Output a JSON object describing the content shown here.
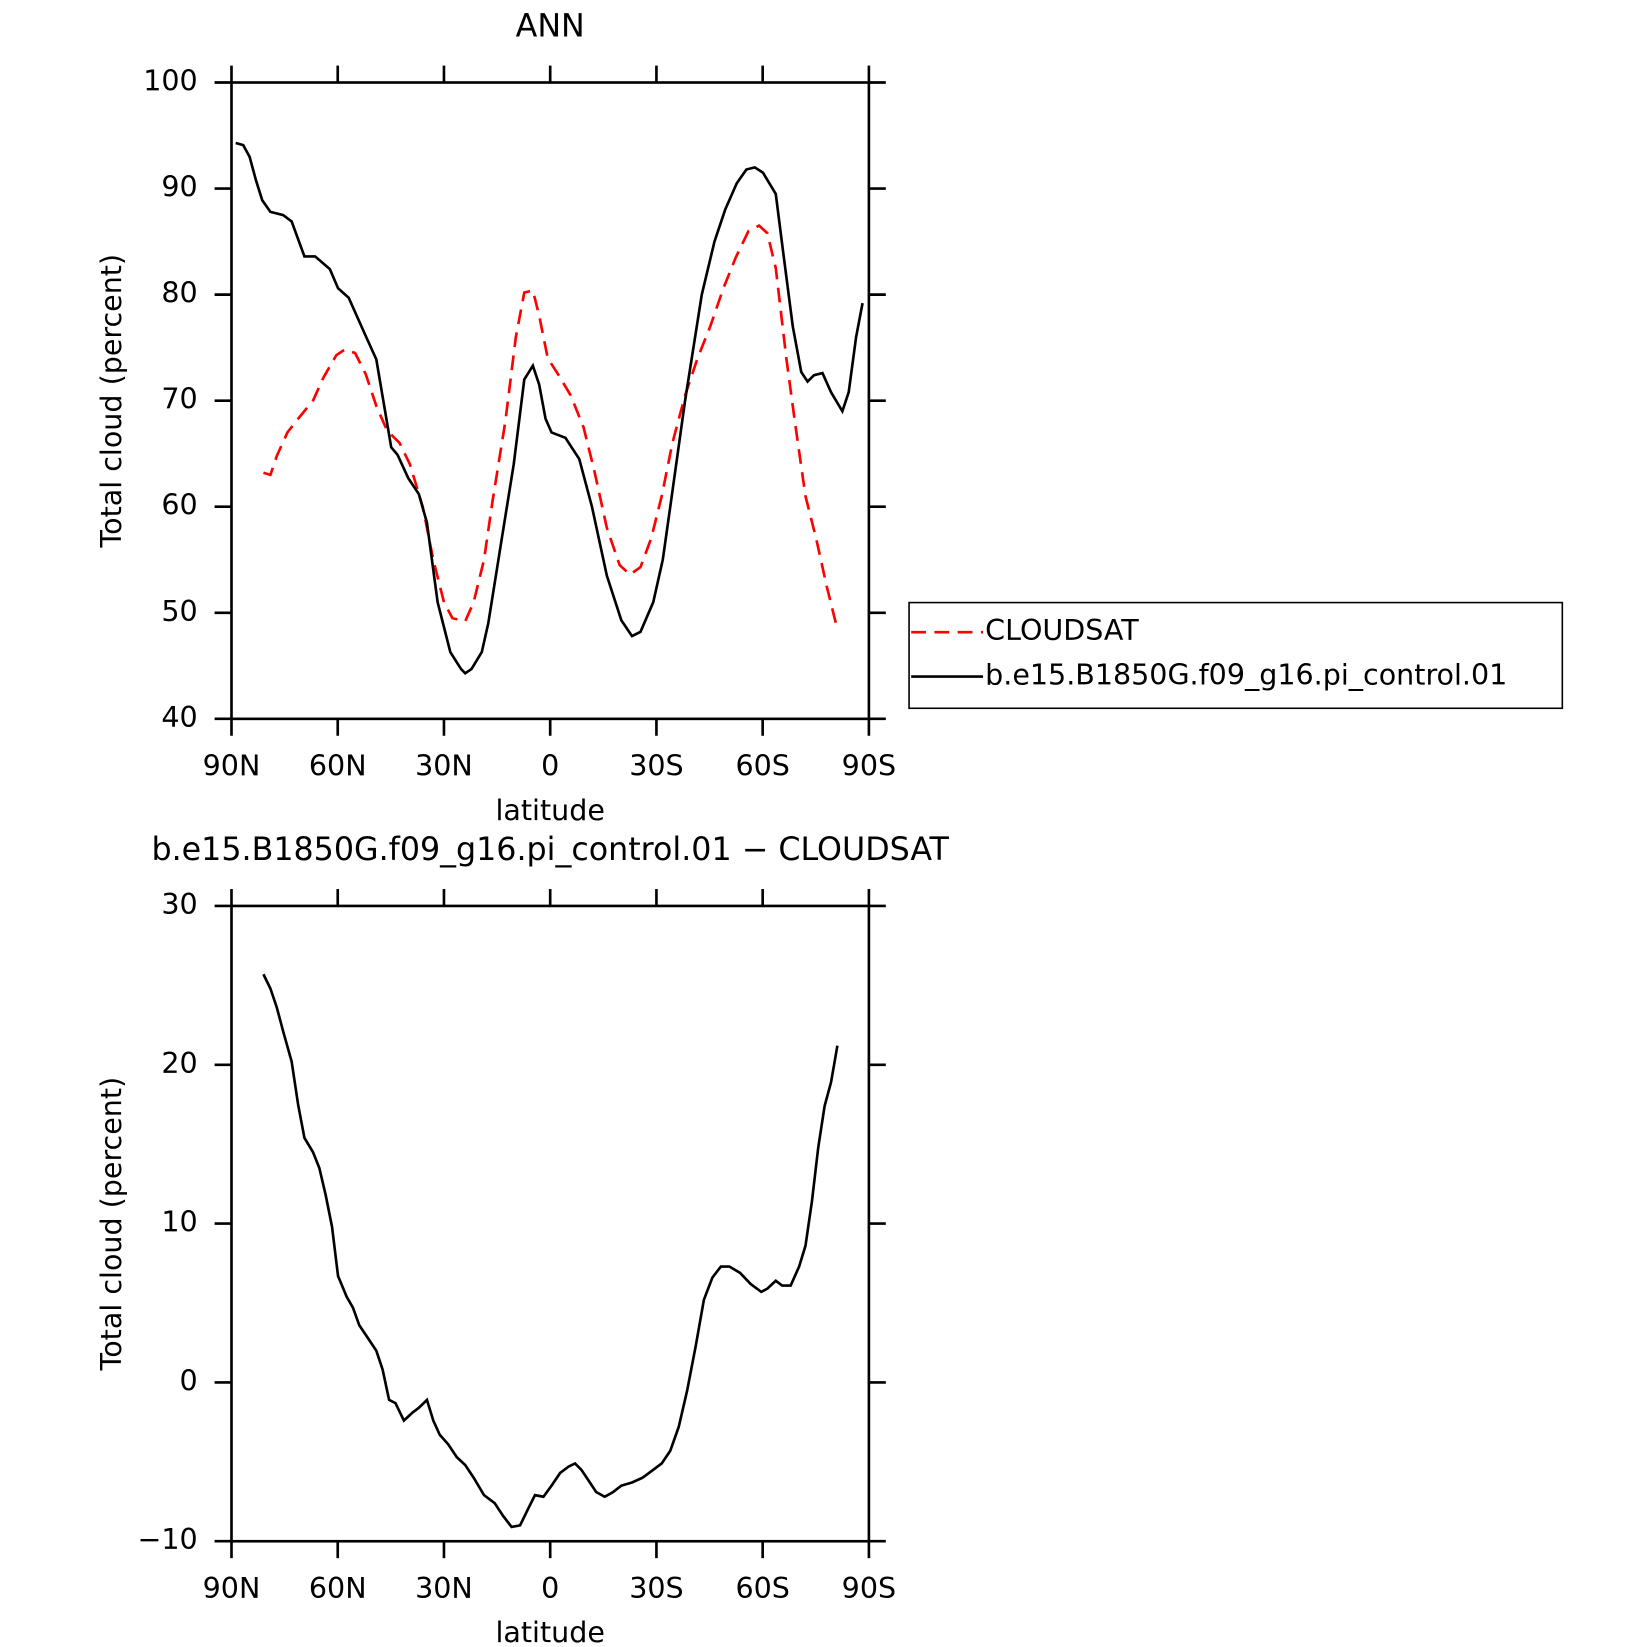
{
  "chart_data": [
    {
      "type": "line",
      "title": "ANN",
      "x_label": "latitude",
      "y_label": "Total cloud (percent)",
      "xlim": [
        90,
        -90
      ],
      "xticks": [
        {
          "value": 90,
          "label": "90N"
        },
        {
          "value": 60,
          "label": "60N"
        },
        {
          "value": 30,
          "label": "30N"
        },
        0,
        {
          "value": -30,
          "label": "30S"
        },
        {
          "value": -60,
          "label": "60S"
        },
        {
          "value": -90,
          "label": "90S"
        }
      ],
      "ylim": [
        40,
        100
      ],
      "yticks": [
        40,
        50,
        60,
        70,
        80,
        90,
        100
      ],
      "legend": "right",
      "series": [
        {
          "name": "CLOUDSAT",
          "color": "#ff0000",
          "line_style": "dashed",
          "x": [
            81.0,
            79.0,
            77.2,
            74.2,
            71.2,
            67.0,
            64.0,
            60.4,
            58.1,
            55.1,
            52.1,
            49.1,
            46.1,
            42.5,
            39.6,
            36.0,
            33.0,
            30.0,
            27.6,
            24.0,
            21.6,
            18.7,
            16.3,
            12.7,
            9.7,
            7.3,
            4.9,
            3.1,
            0.7,
            -2.2,
            -5.8,
            -9.4,
            -12.4,
            -16.0,
            -19.6,
            -22.5,
            -25.5,
            -28.5,
            -31.5,
            -34.5,
            -38.1,
            -41.6,
            -45.2,
            -48.8,
            -52.4,
            -56.0,
            -59.0,
            -61.3,
            -63.7,
            -66.7,
            -69.1,
            -72.1,
            -75.1,
            -78.1,
            -80.7
          ],
          "values": [
            63.2,
            63.0,
            64.8,
            67.0,
            68.3,
            70.0,
            72.2,
            74.3,
            74.8,
            74.5,
            72.5,
            69.5,
            67.2,
            66.0,
            64.0,
            60.0,
            55.0,
            51.0,
            49.5,
            49.2,
            51.0,
            55.0,
            60.5,
            68.0,
            76.0,
            80.2,
            80.4,
            78.0,
            74.0,
            72.5,
            70.5,
            67.5,
            63.5,
            58.0,
            54.5,
            53.6,
            54.3,
            57.0,
            61.0,
            66.0,
            70.5,
            74.0,
            77.0,
            80.5,
            83.5,
            86.0,
            86.5,
            85.8,
            82.5,
            74.0,
            68.0,
            61.0,
            57.0,
            52.5,
            49.0
          ]
        },
        {
          "name": "b.e15.B1850G.f09_g16.pi_control.01",
          "color": "#000000",
          "line_style": "solid",
          "x": [
            88.8,
            86.7,
            84.9,
            83.1,
            81.3,
            79.0,
            75.4,
            73.0,
            69.4,
            66.4,
            62.2,
            59.9,
            56.9,
            52.1,
            49.1,
            44.9,
            43.1,
            40.1,
            37.1,
            34.8,
            31.8,
            28.2,
            25.2,
            24.0,
            22.2,
            19.3,
            17.5,
            13.9,
            10.3,
            7.3,
            4.9,
            3.1,
            1.3,
            -0.4,
            -4.3,
            -8.2,
            -11.8,
            -16.0,
            -20.1,
            -23.1,
            -25.5,
            -29.1,
            -31.8,
            -33.9,
            -38.1,
            -42.8,
            -46.4,
            -49.4,
            -52.7,
            -55.4,
            -57.8,
            -60.1,
            -63.7,
            -65.8,
            -68.5,
            -70.9,
            -72.7,
            -74.5,
            -76.9,
            -79.3,
            -82.5,
            -84.3,
            -86.4,
            -88.2
          ],
          "values": [
            94.3,
            94.1,
            93.0,
            90.8,
            88.9,
            87.8,
            87.5,
            86.9,
            83.6,
            83.6,
            82.4,
            80.6,
            79.7,
            76.1,
            73.9,
            65.6,
            64.9,
            62.7,
            61.2,
            58.5,
            51.0,
            46.3,
            44.7,
            44.3,
            44.7,
            46.3,
            49.0,
            56.5,
            64.0,
            72.0,
            73.3,
            71.5,
            68.3,
            67.0,
            66.5,
            64.5,
            60.0,
            53.5,
            49.3,
            47.8,
            48.2,
            51.0,
            55.0,
            60.0,
            70.0,
            80.0,
            85.0,
            88.0,
            90.5,
            91.8,
            92.0,
            91.5,
            89.5,
            84.0,
            77.0,
            72.7,
            71.8,
            72.4,
            72.6,
            70.8,
            69.0,
            70.8,
            76.0,
            79.2
          ]
        }
      ]
    },
    {
      "type": "line",
      "title": "b.e15.B1850G.f09_g16.pi_control.01 − CLOUDSAT",
      "x_label": "latitude",
      "y_label": "Total cloud (percent)",
      "xlim": [
        90,
        -90
      ],
      "xticks": [
        {
          "value": 90,
          "label": "90N"
        },
        {
          "value": 60,
          "label": "60N"
        },
        {
          "value": 30,
          "label": "30N"
        },
        0,
        {
          "value": -30,
          "label": "30S"
        },
        {
          "value": -60,
          "label": "60S"
        },
        {
          "value": -90,
          "label": "90S"
        }
      ],
      "ylim": [
        -10,
        30
      ],
      "yticks": [
        {
          "value": -10,
          "label": "−10"
        },
        0,
        10,
        20,
        30
      ],
      "series": [
        {
          "color": "#000000",
          "line_style": "solid",
          "x": [
            81.0,
            79.0,
            77.2,
            75.4,
            73.0,
            71.2,
            69.4,
            67.0,
            65.2,
            63.4,
            61.6,
            59.9,
            57.5,
            55.7,
            53.9,
            51.5,
            49.1,
            47.3,
            45.5,
            43.7,
            41.3,
            38.9,
            37.1,
            34.8,
            33.0,
            31.2,
            28.8,
            26.4,
            24.0,
            21.6,
            18.7,
            15.7,
            13.3,
            10.9,
            8.5,
            6.1,
            4.3,
            1.9,
            -0.4,
            -2.8,
            -5.2,
            -7.0,
            -8.8,
            -10.6,
            -13.0,
            -15.4,
            -17.8,
            -20.1,
            -23.1,
            -26.1,
            -29.1,
            -31.5,
            -33.9,
            -36.3,
            -38.7,
            -41.1,
            -43.4,
            -45.8,
            -48.2,
            -50.6,
            -53.6,
            -56.6,
            -59.6,
            -61.3,
            -63.7,
            -65.5,
            -67.9,
            -70.3,
            -72.1,
            -73.9,
            -75.7,
            -77.5,
            -79.3,
            -81.1
          ],
          "values": [
            25.7,
            24.8,
            23.6,
            22.1,
            20.2,
            17.5,
            15.4,
            14.5,
            13.5,
            11.8,
            9.8,
            6.7,
            5.4,
            4.7,
            3.6,
            2.8,
            2.0,
            0.8,
            -1.1,
            -1.3,
            -2.4,
            -1.9,
            -1.6,
            -1.1,
            -2.4,
            -3.3,
            -3.9,
            -4.7,
            -5.2,
            -6.0,
            -7.1,
            -7.6,
            -8.4,
            -9.1,
            -9.0,
            -7.9,
            -7.1,
            -7.2,
            -6.5,
            -5.7,
            -5.3,
            -5.1,
            -5.5,
            -6.1,
            -6.9,
            -7.2,
            -6.9,
            -6.5,
            -6.3,
            -6.0,
            -5.5,
            -5.1,
            -4.3,
            -2.8,
            -0.5,
            2.3,
            5.2,
            6.6,
            7.3,
            7.3,
            6.9,
            6.2,
            5.7,
            5.9,
            6.4,
            6.1,
            6.1,
            7.3,
            8.6,
            11.4,
            14.8,
            17.4,
            18.9,
            21.2
          ]
        }
      ]
    }
  ]
}
